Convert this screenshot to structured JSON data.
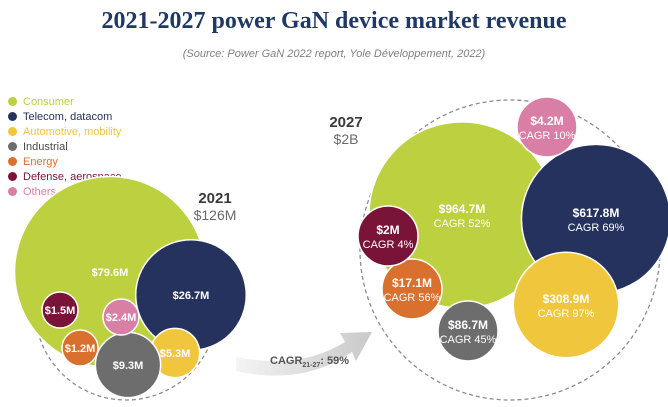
{
  "title": "2021-2027 power GaN device market revenue",
  "source": "(Source: Power GaN 2022 report, Yole Développement, 2022)",
  "legend": [
    {
      "label": "Consumer",
      "color": "#bcd040",
      "text_color": "#bcd040"
    },
    {
      "label": "Telecom, datacom",
      "color": "#26325e",
      "text_color": "#26325e"
    },
    {
      "label": "Automotive, mobility",
      "color": "#f0c63c",
      "text_color": "#f0c63c"
    },
    {
      "label": "Industrial",
      "color": "#6d6d6d",
      "text_color": "#4a4a4a"
    },
    {
      "label": "Energy",
      "color": "#d9702e",
      "text_color": "#d9702e"
    },
    {
      "label": "Defense, aerospace",
      "color": "#7a1338",
      "text_color": "#7a1338"
    },
    {
      "label": "Others",
      "color": "#d97fa6",
      "text_color": "#d97fa6"
    }
  ],
  "cagr_arrow": {
    "prefix": "CAGR",
    "sub": "21-27",
    "suffix": ": 59%"
  },
  "chart_data": {
    "type": "bubble",
    "title": "2021-2027 power GaN device market revenue",
    "unit": "$M",
    "groups": [
      {
        "year": "2021",
        "total_label": "$126M",
        "total": 126,
        "segments": [
          {
            "segment": "Consumer",
            "value": 79.6,
            "label": "$79.6M"
          },
          {
            "segment": "Telecom, datacom",
            "value": 26.7,
            "label": "$26.7M"
          },
          {
            "segment": "Automotive, mobility",
            "value": 5.3,
            "label": "$5.3M"
          },
          {
            "segment": "Industrial",
            "value": 9.3,
            "label": "$9.3M"
          },
          {
            "segment": "Energy",
            "value": 1.2,
            "label": "$1.2M"
          },
          {
            "segment": "Defense, aerospace",
            "value": 1.5,
            "label": "$1.5M"
          },
          {
            "segment": "Others",
            "value": 2.4,
            "label": "$2.4M"
          }
        ]
      },
      {
        "year": "2027",
        "total_label": "$2B",
        "total": 2000,
        "segments": [
          {
            "segment": "Consumer",
            "value": 964.7,
            "label": "$964.7M",
            "cagr": "CAGR 52%"
          },
          {
            "segment": "Telecom, datacom",
            "value": 617.8,
            "label": "$617.8M",
            "cagr": "CAGR 69%"
          },
          {
            "segment": "Automotive, mobility",
            "value": 308.9,
            "label": "$308.9M",
            "cagr": "CAGR 97%"
          },
          {
            "segment": "Industrial",
            "value": 86.7,
            "label": "$86.7M",
            "cagr": "CAGR 45%"
          },
          {
            "segment": "Energy",
            "value": 17.1,
            "label": "$17.1M",
            "cagr": "CAGR 56%"
          },
          {
            "segment": "Defense, aerospace",
            "value": 2,
            "label": "$2M",
            "cagr": "CAGR 4%"
          },
          {
            "segment": "Others",
            "value": 4.2,
            "label": "$4.2M",
            "cagr": "CAGR 10%"
          }
        ]
      }
    ]
  }
}
